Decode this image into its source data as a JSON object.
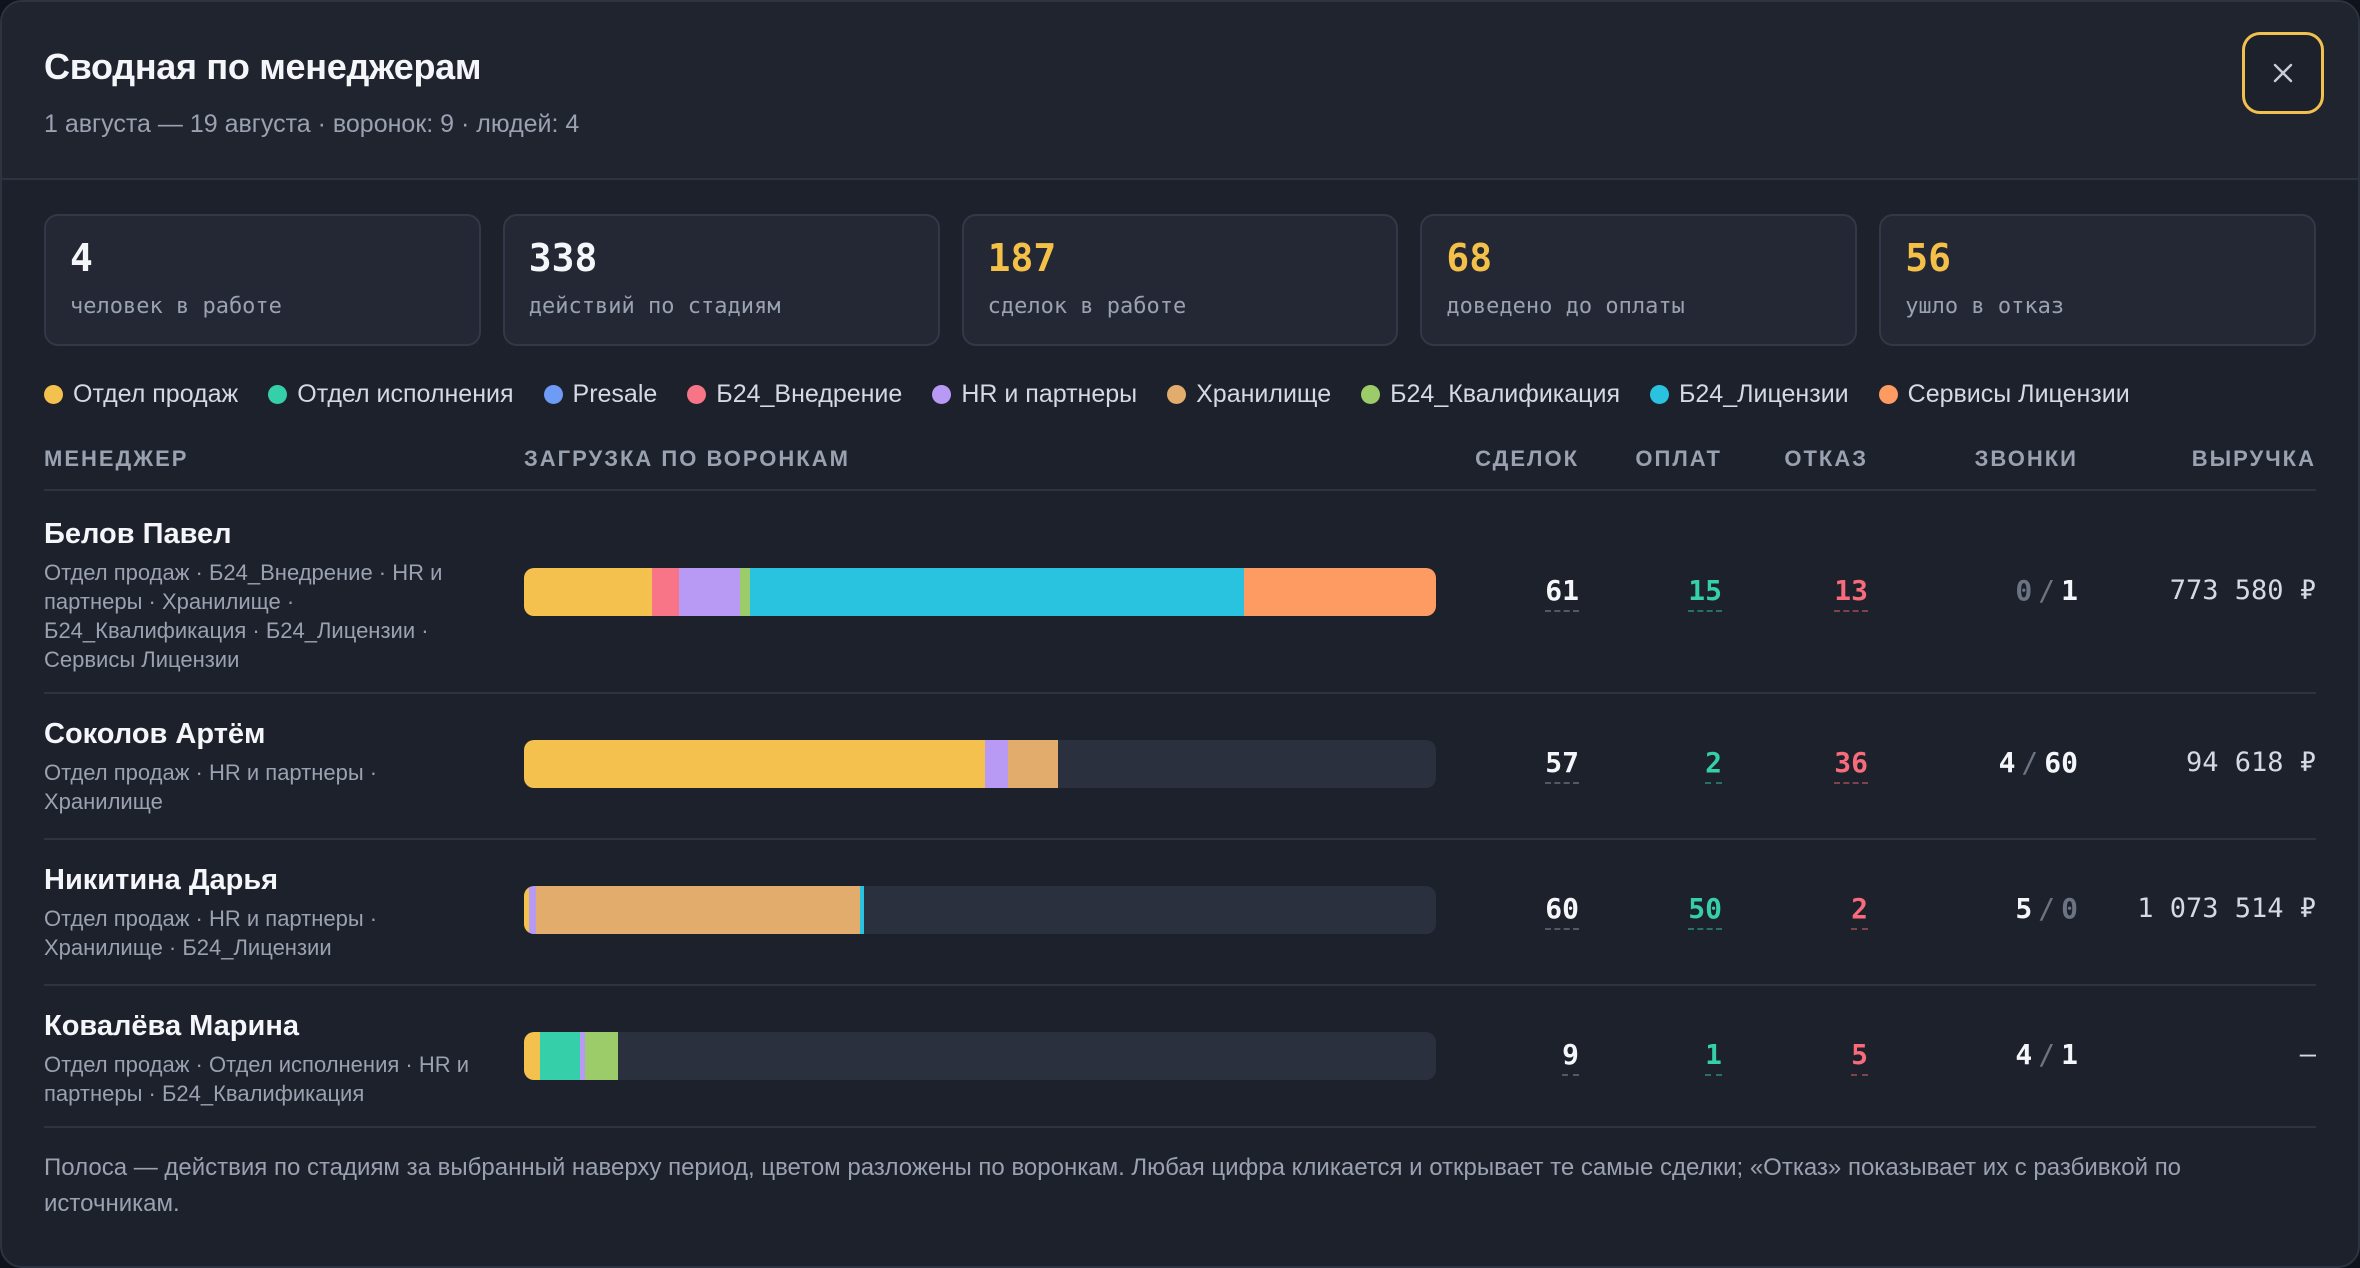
{
  "header": {
    "title": "Сводная по менеджерам",
    "subtitle": "1 августа — 19 августа · воронок: 9 · людей: 4",
    "close_icon": "close-icon"
  },
  "stats": [
    {
      "value": "4",
      "label": "человек в работе",
      "accent": false
    },
    {
      "value": "338",
      "label": "действий по стадиям",
      "accent": false
    },
    {
      "value": "187",
      "label": "сделок в работе",
      "accent": true
    },
    {
      "value": "68",
      "label": "доведено до оплаты",
      "accent": true
    },
    {
      "value": "56",
      "label": "ушло в отказ",
      "accent": true
    }
  ],
  "legend": [
    {
      "label": "Отдел продаж",
      "color": "#f4c04e"
    },
    {
      "label": "Отдел исполнения",
      "color": "#35d0aa"
    },
    {
      "label": "Presale",
      "color": "#6d9bf5"
    },
    {
      "label": "Б24_Внедрение",
      "color": "#f87587"
    },
    {
      "label": "HR и партнеры",
      "color": "#b89af5"
    },
    {
      "label": "Хранилище",
      "color": "#e2ad6c"
    },
    {
      "label": "Б24_Квалификация",
      "color": "#9ccc6a"
    },
    {
      "label": "Б24_Лицензии",
      "color": "#2ac3df"
    },
    {
      "label": "Сервисы Лицензии",
      "color": "#fd9b63"
    }
  ],
  "table": {
    "columns": {
      "manager": "МЕНЕДЖЕР",
      "load": "ЗАГРУЗКА ПО ВОРОНКАМ",
      "deals": "СДЕЛОК",
      "paid": "ОПЛАТ",
      "refused": "ОТКАЗ",
      "calls": "ЗВОНКИ",
      "revenue": "ВЫРУЧКА"
    },
    "rows": [
      {
        "name": "Белов Павел",
        "funnels": "Отдел продаж · Б24_Внедрение · HR и партнеры · Хранилище · Б24_Квалификация · Б24_Лицензии · Сервисы Лицензии",
        "deals": "61",
        "paid": "15",
        "refused": "13",
        "calls_in": "0",
        "calls_out": "1",
        "revenue": "773 580 ₽",
        "segments": [
          {
            "funnel": "Отдел продаж",
            "share": 0.14,
            "color": "#f4c04e"
          },
          {
            "funnel": "Б24_Внедрение",
            "share": 0.03,
            "color": "#f87587"
          },
          {
            "funnel": "HR и партнеры",
            "share": 0.067,
            "color": "#b89af5"
          },
          {
            "funnel": "Б24_Квалификация",
            "share": 0.011,
            "color": "#9ccc6a"
          },
          {
            "funnel": "Б24_Лицензии",
            "share": 0.542,
            "color": "#2ac3df"
          },
          {
            "funnel": "Сервисы Лицензии",
            "share": 0.21,
            "color": "#fd9b63"
          }
        ]
      },
      {
        "name": "Соколов Артём",
        "funnels": "Отдел продаж · HR и партнеры · Хранилище",
        "deals": "57",
        "paid": "2",
        "refused": "36",
        "calls_in": "4",
        "calls_out": "60",
        "revenue": "94 618 ₽",
        "segments": [
          {
            "funnel": "Отдел продаж",
            "share": 0.505,
            "color": "#f4c04e"
          },
          {
            "funnel": "HR и партнеры",
            "share": 0.026,
            "color": "#b89af5"
          },
          {
            "funnel": "Хранилище",
            "share": 0.055,
            "color": "#e2ad6c"
          }
        ]
      },
      {
        "name": "Никитина Дарья",
        "funnels": "Отдел продаж · HR и партнеры · Хранилище · Б24_Лицензии",
        "deals": "60",
        "paid": "50",
        "refused": "2",
        "calls_in": "5",
        "calls_out": "0",
        "revenue": "1 073 514 ₽",
        "segments": [
          {
            "funnel": "Отдел продаж",
            "share": 0.006,
            "color": "#f4c04e"
          },
          {
            "funnel": "HR и партнеры",
            "share": 0.007,
            "color": "#b89af5"
          },
          {
            "funnel": "Хранилище",
            "share": 0.355,
            "color": "#e2ad6c"
          },
          {
            "funnel": "Б24_Лицензии",
            "share": 0.005,
            "color": "#2ac3df"
          }
        ]
      },
      {
        "name": "Ковалёва Марина",
        "funnels": "Отдел продаж · Отдел исполнения · HR и партнеры · Б24_Квалификация",
        "deals": "9",
        "paid": "1",
        "refused": "5",
        "calls_in": "4",
        "calls_out": "1",
        "revenue": "—",
        "segments": [
          {
            "funnel": "Отдел продаж",
            "share": 0.017,
            "color": "#f4c04e"
          },
          {
            "funnel": "Отдел исполнения",
            "share": 0.044,
            "color": "#35d0aa"
          },
          {
            "funnel": "HR и партнеры",
            "share": 0.006,
            "color": "#b89af5"
          },
          {
            "funnel": "Б24_Квалификация",
            "share": 0.036,
            "color": "#9ccc6a"
          }
        ]
      }
    ]
  },
  "footer_note": "Полоса — действия по стадиям за выбранный наверху период, цветом разложены по воронкам. Любая цифра кликается и открывает те самые сделки; «Отказ» показывает их с разбивкой по источникам."
}
